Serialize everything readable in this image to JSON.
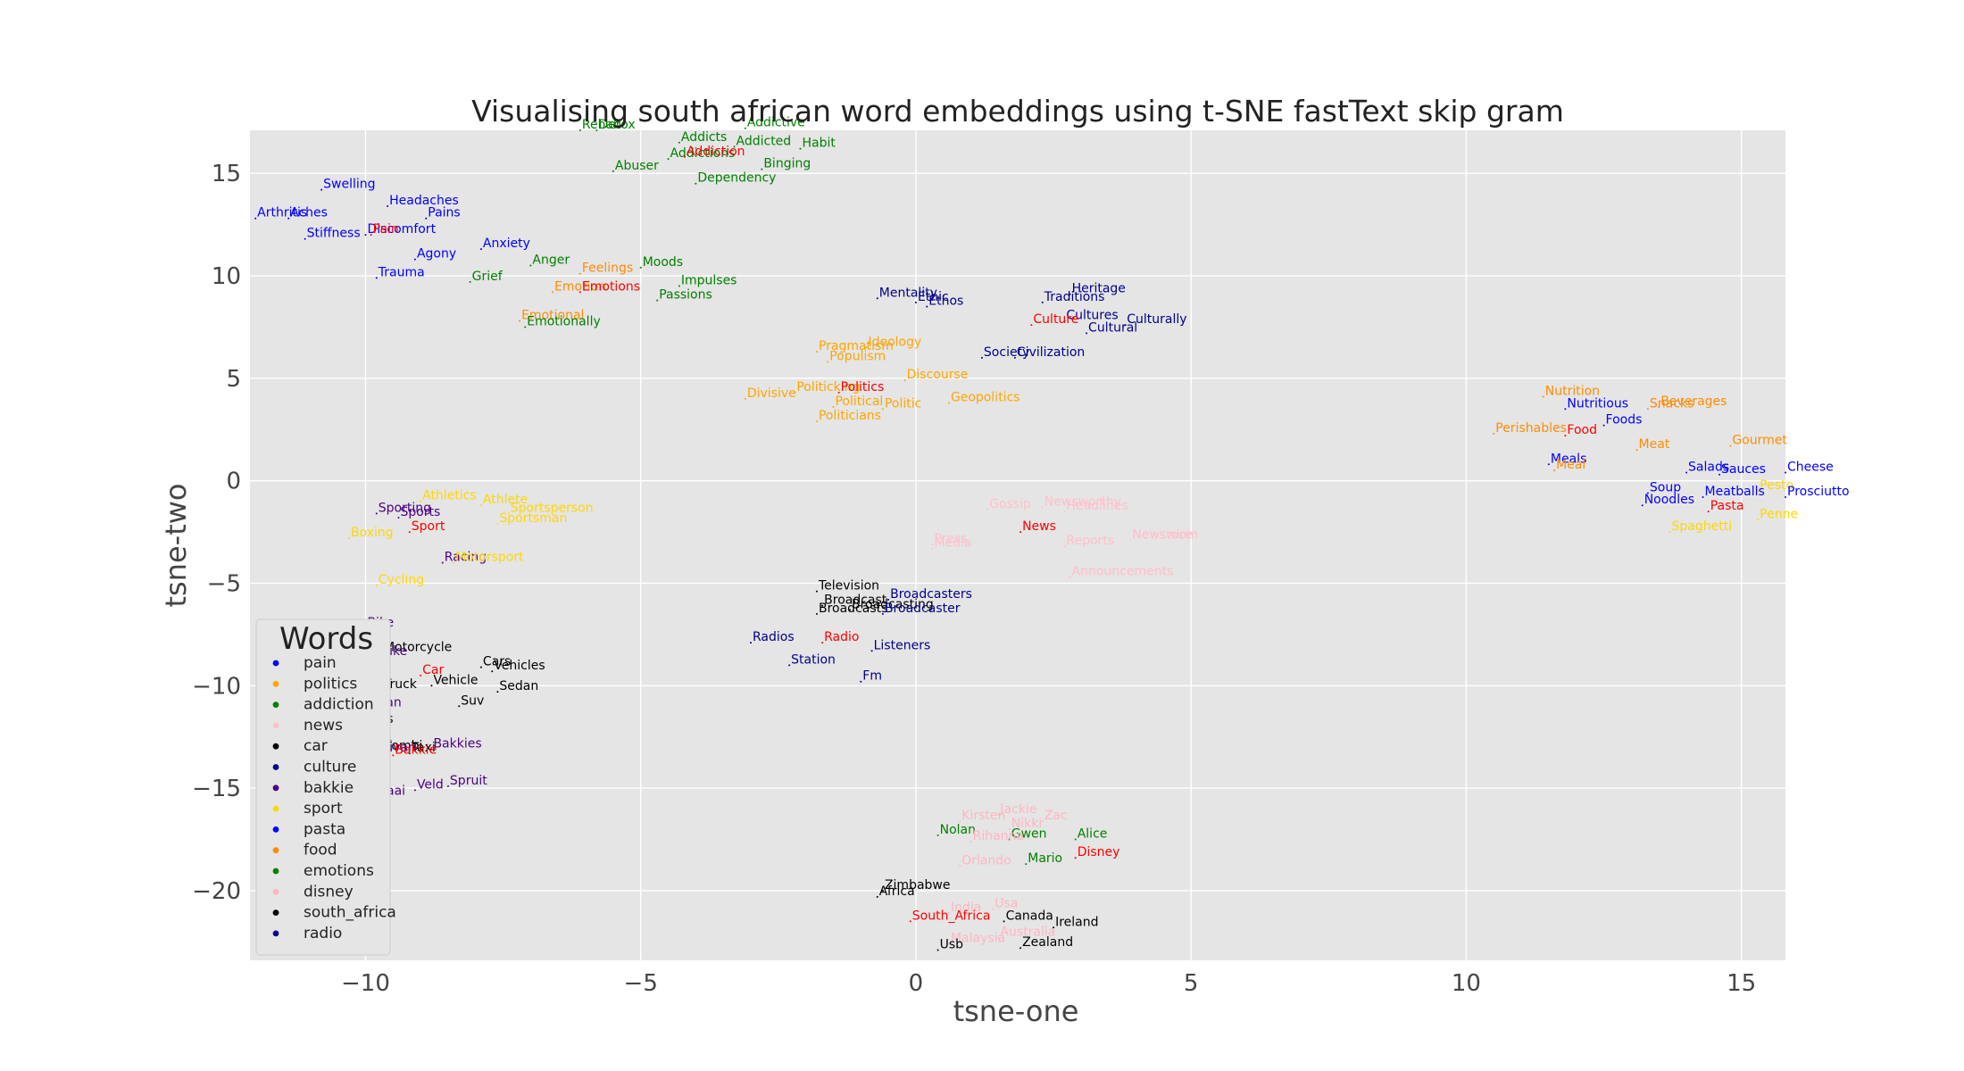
{
  "chart_data": {
    "type": "scatter",
    "title": "Visualising south african word embeddings using t-SNE fastText skip gram",
    "xlabel": "tsne-one",
    "ylabel": "tsne-two",
    "xlim": [
      -12.1,
      15.8
    ],
    "ylim": [
      -23.4,
      17.1
    ],
    "xticks": [
      -10,
      -5,
      0,
      5,
      10,
      15
    ],
    "yticks": [
      15,
      10,
      5,
      0,
      -5,
      -10,
      -15,
      -20
    ],
    "grid": true,
    "legend": {
      "title": "Words",
      "placement": "bottom-left"
    },
    "series": [
      {
        "name": "pain",
        "color": "#0000ff",
        "points": [
          {
            "label": "Swelling",
            "x": -10.8,
            "y": 14.2
          },
          {
            "label": "Headaches",
            "x": -9.6,
            "y": 13.4
          },
          {
            "label": "Arthritis",
            "x": -12.0,
            "y": 12.8
          },
          {
            "label": "Aches",
            "x": -11.4,
            "y": 12.8
          },
          {
            "label": "Pains",
            "x": -8.9,
            "y": 12.8
          },
          {
            "label": "Stiffness",
            "x": -11.1,
            "y": 11.8
          },
          {
            "label": "Discomfort",
            "x": -10.0,
            "y": 12.0
          },
          {
            "label": "Agony",
            "x": -9.1,
            "y": 10.8
          },
          {
            "label": "Trauma",
            "x": -9.8,
            "y": 9.9
          },
          {
            "label": "Anxiety",
            "x": -7.9,
            "y": 11.3
          }
        ]
      },
      {
        "name": "politics",
        "color": "#ffa500",
        "points": [
          {
            "label": "Pragmatism",
            "x": -1.8,
            "y": 6.3
          },
          {
            "label": "Ideology",
            "x": -0.9,
            "y": 6.5
          },
          {
            "label": "Populism",
            "x": -1.6,
            "y": 5.8
          },
          {
            "label": "Discourse",
            "x": -0.2,
            "y": 4.9
          },
          {
            "label": "Politicking",
            "x": -2.2,
            "y": 4.3
          },
          {
            "label": "Divisive",
            "x": -3.1,
            "y": 4.0
          },
          {
            "label": "Political",
            "x": -1.5,
            "y": 3.6
          },
          {
            "label": "Politic",
            "x": -0.6,
            "y": 3.5
          },
          {
            "label": "Geopolitics",
            "x": 0.6,
            "y": 3.8
          },
          {
            "label": "Politicians",
            "x": -1.8,
            "y": 2.9
          }
        ]
      },
      {
        "name": "addiction",
        "color": "#008000",
        "points": [
          {
            "label": "Rehab",
            "x": -6.1,
            "y": 17.1
          },
          {
            "label": "Detox",
            "x": -5.8,
            "y": 17.1
          },
          {
            "label": "Addictive",
            "x": -3.1,
            "y": 17.2
          },
          {
            "label": "Addicts",
            "x": -4.3,
            "y": 16.5
          },
          {
            "label": "Addicted",
            "x": -3.3,
            "y": 16.3
          },
          {
            "label": "Habit",
            "x": -2.1,
            "y": 16.2
          },
          {
            "label": "Addictions",
            "x": -4.5,
            "y": 15.7
          },
          {
            "label": "Abuser",
            "x": -5.5,
            "y": 15.1
          },
          {
            "label": "Binging",
            "x": -2.8,
            "y": 15.2
          },
          {
            "label": "Dependency",
            "x": -4.0,
            "y": 14.5
          }
        ]
      },
      {
        "name": "news",
        "color": "#ffc0cb",
        "points": [
          {
            "label": "Newsworthy",
            "x": 2.3,
            "y": -1.3
          },
          {
            "label": "Gossip",
            "x": 1.3,
            "y": -1.4
          },
          {
            "label": "Headlines",
            "x": 2.7,
            "y": -1.5
          },
          {
            "label": "Press",
            "x": 0.3,
            "y": -3.1
          },
          {
            "label": "Media",
            "x": 0.3,
            "y": -3.3
          },
          {
            "label": "Newswire",
            "x": 3.9,
            "y": -2.9
          },
          {
            "label": "Newsroom",
            "x": 3.9,
            "y": -2.9
          },
          {
            "label": "Reports",
            "x": 2.7,
            "y": -3.2
          },
          {
            "label": "Announcements",
            "x": 2.8,
            "y": -4.7
          },
          {
            "label": "Announcement",
            "x": 2.8,
            "y": -4.7
          }
        ]
      },
      {
        "name": "car",
        "color": "#000000",
        "points": [
          {
            "label": "Motorcycle",
            "x": -9.7,
            "y": -8.4
          },
          {
            "label": "Cars",
            "x": -7.9,
            "y": -9.1
          },
          {
            "label": "Vehicles",
            "x": -7.7,
            "y": -9.3
          },
          {
            "label": "Vehicle",
            "x": -8.8,
            "y": -10.0
          },
          {
            "label": "Truck",
            "x": -9.7,
            "y": -10.2
          },
          {
            "label": "Sedan",
            "x": -7.6,
            "y": -10.3
          },
          {
            "label": "Suv",
            "x": -8.3,
            "y": -11.0
          },
          {
            "label": "Minibus",
            "x": -10.4,
            "y": -11.9
          },
          {
            "label": "Kombi",
            "x": -9.7,
            "y": -13.2
          },
          {
            "label": "Taxi",
            "x": -9.2,
            "y": -13.3
          }
        ]
      },
      {
        "name": "culture",
        "color": "#00008b",
        "points": [
          {
            "label": "Mentality",
            "x": -0.7,
            "y": 8.9
          },
          {
            "label": "Ethic",
            "x": 0.0,
            "y": 8.7
          },
          {
            "label": "Ethos",
            "x": 0.2,
            "y": 8.5
          },
          {
            "label": "Heritage",
            "x": 2.8,
            "y": 9.1
          },
          {
            "label": "Traditions",
            "x": 2.3,
            "y": 8.7
          },
          {
            "label": "Cultures",
            "x": 2.7,
            "y": 7.8
          },
          {
            "label": "Cultural",
            "x": 3.1,
            "y": 7.2
          },
          {
            "label": "Culturally",
            "x": 3.8,
            "y": 7.6
          },
          {
            "label": "Society",
            "x": 1.2,
            "y": 6.0
          },
          {
            "label": "Civilization",
            "x": 1.8,
            "y": 6.0
          }
        ]
      },
      {
        "name": "bakkie",
        "color": "#4b0082",
        "points": [
          {
            "label": "Sporting",
            "x": -9.8,
            "y": -1.6
          },
          {
            "label": "Sports",
            "x": -9.4,
            "y": -1.8
          },
          {
            "label": "Racing",
            "x": -8.6,
            "y": -4.0
          },
          {
            "label": "Motorbike",
            "x": -10.4,
            "y": -8.6
          },
          {
            "label": "Bike",
            "x": -10.0,
            "y": -7.2
          },
          {
            "label": "Van",
            "x": -9.8,
            "y": -11.1
          },
          {
            "label": "Minivan",
            "x": -10.0,
            "y": -13.3
          },
          {
            "label": "Bakkies",
            "x": -8.8,
            "y": -13.1
          },
          {
            "label": "Veld",
            "x": -9.1,
            "y": -15.1
          },
          {
            "label": "Spruit",
            "x": -8.5,
            "y": -14.9
          },
          {
            "label": "Braai",
            "x": -9.9,
            "y": -15.4
          }
        ]
      },
      {
        "name": "sport",
        "color": "#ffd700",
        "points": [
          {
            "label": "Athletics",
            "x": -9.0,
            "y": -1.0
          },
          {
            "label": "Athlete",
            "x": -7.9,
            "y": -1.2
          },
          {
            "label": "Sportsperson",
            "x": -7.4,
            "y": -1.6
          },
          {
            "label": "Sportsman",
            "x": -7.6,
            "y": -2.1
          },
          {
            "label": "Boxing",
            "x": -10.3,
            "y": -2.8
          },
          {
            "label": "Motorsport",
            "x": -8.4,
            "y": -4.0
          },
          {
            "label": "Cycling",
            "x": -9.8,
            "y": -5.1
          },
          {
            "label": "Pesto",
            "x": 15.3,
            "y": -0.5
          },
          {
            "label": "Penne",
            "x": 15.3,
            "y": -1.9
          },
          {
            "label": "Spaghetti",
            "x": 13.7,
            "y": -2.5
          }
        ]
      },
      {
        "name": "pasta",
        "color": "#0000ff",
        "points": [
          {
            "label": "Nutritious",
            "x": 11.8,
            "y": 3.5
          },
          {
            "label": "Foods",
            "x": 12.5,
            "y": 2.7
          },
          {
            "label": "Meals",
            "x": 11.5,
            "y": 0.8
          },
          {
            "label": "Salads",
            "x": 14.0,
            "y": 0.4
          },
          {
            "label": "Sauces",
            "x": 14.6,
            "y": 0.3
          },
          {
            "label": "Cheese",
            "x": 15.8,
            "y": 0.4
          },
          {
            "label": "Soup",
            "x": 13.3,
            "y": -0.6
          },
          {
            "label": "Meatballs",
            "x": 14.3,
            "y": -0.8
          },
          {
            "label": "Noodles",
            "x": 13.2,
            "y": -1.2
          },
          {
            "label": "Prosciutto",
            "x": 15.8,
            "y": -0.8
          }
        ]
      },
      {
        "name": "food",
        "color": "#ff8c00",
        "points": [
          {
            "label": "Nutrition",
            "x": 11.4,
            "y": 4.1
          },
          {
            "label": "Beverages",
            "x": 13.5,
            "y": 3.6
          },
          {
            "label": "Snacks",
            "x": 13.3,
            "y": 3.5
          },
          {
            "label": "Perishables",
            "x": 10.5,
            "y": 2.3
          },
          {
            "label": "Meat",
            "x": 13.1,
            "y": 1.5
          },
          {
            "label": "Gourmet",
            "x": 14.8,
            "y": 1.7
          },
          {
            "label": "Meal",
            "x": 11.6,
            "y": 0.5
          },
          {
            "label": "Feelings",
            "x": -6.1,
            "y": 10.1
          },
          {
            "label": "Emotion",
            "x": -6.6,
            "y": 9.2
          },
          {
            "label": "Emotional",
            "x": -7.2,
            "y": 7.8
          }
        ]
      },
      {
        "name": "emotions",
        "color": "#008000",
        "points": [
          {
            "label": "Moods",
            "x": -5.0,
            "y": 10.4
          },
          {
            "label": "Anger",
            "x": -7.0,
            "y": 10.5
          },
          {
            "label": "Grief",
            "x": -8.1,
            "y": 9.7
          },
          {
            "label": "Impulses",
            "x": -4.3,
            "y": 9.5
          },
          {
            "label": "Passions",
            "x": -4.7,
            "y": 8.8
          },
          {
            "label": "Emotionally",
            "x": -7.1,
            "y": 7.5
          },
          {
            "label": "Nolan",
            "x": 0.4,
            "y": -17.3
          },
          {
            "label": "Gwen",
            "x": 1.7,
            "y": -17.5
          },
          {
            "label": "Alice",
            "x": 2.9,
            "y": -17.5
          },
          {
            "label": "Mario",
            "x": 2.0,
            "y": -18.7
          }
        ]
      },
      {
        "name": "disney",
        "color": "#ffb6c1",
        "points": [
          {
            "label": "Jackie",
            "x": 1.5,
            "y": -16.3
          },
          {
            "label": "Kirsten",
            "x": 0.8,
            "y": -16.6
          },
          {
            "label": "Zac",
            "x": 2.3,
            "y": -16.6
          },
          {
            "label": "Nikki",
            "x": 1.7,
            "y": -17.0
          },
          {
            "label": "Rihanna",
            "x": 1.0,
            "y": -17.6
          },
          {
            "label": "Orlando",
            "x": 0.8,
            "y": -18.8
          },
          {
            "label": "India",
            "x": 0.6,
            "y": -21.1
          },
          {
            "label": "Usa",
            "x": 1.4,
            "y": -20.9
          },
          {
            "label": "Australia",
            "x": 1.5,
            "y": -22.3
          },
          {
            "label": "Malaysia",
            "x": 0.6,
            "y": -22.6
          }
        ]
      },
      {
        "name": "south_africa",
        "color": "#000000",
        "points": [
          {
            "label": "Television",
            "x": -1.8,
            "y": -5.4
          },
          {
            "label": "Broadcast",
            "x": -1.7,
            "y": -6.1
          },
          {
            "label": "Broadcasting",
            "x": -1.2,
            "y": -6.3
          },
          {
            "label": "Broadcasts",
            "x": -1.8,
            "y": -6.5
          },
          {
            "label": "Zimbabwe",
            "x": -0.6,
            "y": -20.0
          },
          {
            "label": "Africa",
            "x": -0.7,
            "y": -20.3
          },
          {
            "label": "Canada",
            "x": 1.6,
            "y": -21.5
          },
          {
            "label": "Ireland",
            "x": 2.5,
            "y": -21.8
          },
          {
            "label": "Zealand",
            "x": 1.9,
            "y": -22.8
          },
          {
            "label": "Usb",
            "x": 0.4,
            "y": -22.9
          }
        ]
      },
      {
        "name": "radio",
        "color": "#00008b",
        "points": [
          {
            "label": "Broadcasters",
            "x": -0.5,
            "y": -5.8
          },
          {
            "label": "Broadcaster",
            "x": -0.6,
            "y": -6.5
          },
          {
            "label": "Radios",
            "x": -3.0,
            "y": -7.9
          },
          {
            "label": "Listeners",
            "x": -0.8,
            "y": -8.3
          },
          {
            "label": "Station",
            "x": -2.3,
            "y": -9.0
          },
          {
            "label": "Fm",
            "x": -1.0,
            "y": -9.8
          }
        ]
      },
      {
        "name": "",
        "color": "#ff0000",
        "points": [
          {
            "label": "Addiction",
            "x": -4.2,
            "y": 15.8
          },
          {
            "label": "Pain",
            "x": -9.9,
            "y": 12.0
          },
          {
            "label": "Emotions",
            "x": -6.1,
            "y": 9.2
          },
          {
            "label": "Culture",
            "x": 2.1,
            "y": 7.6
          },
          {
            "label": "Politics",
            "x": -1.4,
            "y": 4.3
          },
          {
            "label": "Food",
            "x": 11.8,
            "y": 2.2
          },
          {
            "label": "Pasta",
            "x": 14.4,
            "y": -1.5
          },
          {
            "label": "News",
            "x": 1.9,
            "y": -2.5
          },
          {
            "label": "Sport",
            "x": -9.2,
            "y": -2.5
          },
          {
            "label": "Radio",
            "x": -1.7,
            "y": -7.9
          },
          {
            "label": "Car",
            "x": -9.0,
            "y": -9.5
          },
          {
            "label": "Bakkie",
            "x": -9.5,
            "y": -13.4
          },
          {
            "label": "Disney",
            "x": 2.9,
            "y": -18.4
          },
          {
            "label": "South_Africa",
            "x": -0.1,
            "y": -21.5
          }
        ]
      }
    ],
    "legend_entries": [
      {
        "name": "pain",
        "color": "#0000ff"
      },
      {
        "name": "politics",
        "color": "#ffa500"
      },
      {
        "name": "addiction",
        "color": "#008000"
      },
      {
        "name": "news",
        "color": "#ffc0cb"
      },
      {
        "name": "car",
        "color": "#000000"
      },
      {
        "name": "culture",
        "color": "#00008b"
      },
      {
        "name": "bakkie",
        "color": "#4b0082"
      },
      {
        "name": "sport",
        "color": "#ffd700"
      },
      {
        "name": "pasta",
        "color": "#0000ff"
      },
      {
        "name": "food",
        "color": "#ff8c00"
      },
      {
        "name": "emotions",
        "color": "#008000"
      },
      {
        "name": "disney",
        "color": "#ffb6c1"
      },
      {
        "name": "south_africa",
        "color": "#000000"
      },
      {
        "name": "radio",
        "color": "#00008b"
      }
    ]
  }
}
